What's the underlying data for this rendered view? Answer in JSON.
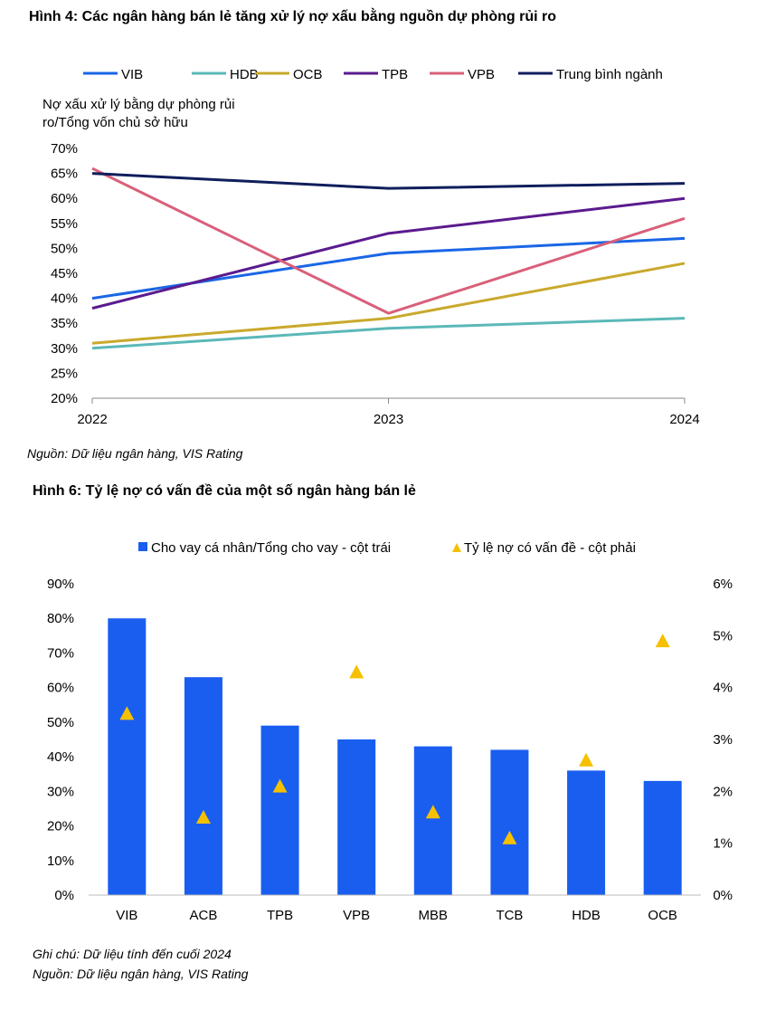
{
  "figure4": {
    "title": "Hình 4: Các ngân hàng bán lẻ tăng xử lý nợ xấu bằng nguồn dự phòng rủi ro",
    "source": "Nguồn: Dữ liệu ngân hàng, VIS Rating"
  },
  "figure6": {
    "title": "Hình 6: Tỷ lệ nợ có vấn đề của một số ngân hàng bán lẻ",
    "note": "Ghi chú: Dữ liệu tính đến cuối 2024",
    "source": "Nguồn: Dữ liệu ngân hàng, VIS Rating"
  },
  "chart_data": [
    {
      "type": "line",
      "title": "",
      "ylabel_lines": [
        "Nợ xấu xử lý bằng dự phòng rủi",
        "ro/Tổng vốn chủ sở hữu"
      ],
      "xlabel": "",
      "x": [
        "2022",
        "2023",
        "2024"
      ],
      "ylim": [
        0.2,
        0.7
      ],
      "yticks": [
        "20%",
        "25%",
        "30%",
        "35%",
        "40%",
        "45%",
        "50%",
        "55%",
        "60%",
        "65%",
        "70%"
      ],
      "grid": false,
      "legend_position": "top",
      "series": [
        {
          "name": "VIB",
          "values": [
            0.4,
            0.49,
            0.52
          ],
          "color": "#1a66e6"
        },
        {
          "name": "HDB",
          "values": [
            0.3,
            0.34,
            0.36
          ],
          "color": "#5bb8b8"
        },
        {
          "name": "OCB",
          "values": [
            0.31,
            0.36,
            0.47
          ],
          "color": "#c9a92c"
        },
        {
          "name": "TPB",
          "values": [
            0.38,
            0.53,
            0.6
          ],
          "color": "#5b1b8f"
        },
        {
          "name": "VPB",
          "values": [
            0.66,
            0.37,
            0.56
          ],
          "color": "#d9607a"
        },
        {
          "name": "Trung bình ngành",
          "values": [
            0.65,
            0.62,
            0.63
          ],
          "color": "#0f1e5c"
        }
      ]
    },
    {
      "type": "bar",
      "title": "",
      "categories": [
        "VIB",
        "ACB",
        "TPB",
        "VPB",
        "MBB",
        "TCB",
        "HDB",
        "OCB"
      ],
      "ylim_left": [
        0,
        0.9
      ],
      "yticks_left": [
        "0%",
        "10%",
        "20%",
        "30%",
        "40%",
        "50%",
        "60%",
        "70%",
        "80%",
        "90%"
      ],
      "ylim_right": [
        0,
        0.06
      ],
      "yticks_right": [
        "0%",
        "1%",
        "2%",
        "3%",
        "4%",
        "5%",
        "6%"
      ],
      "grid": false,
      "legend_position": "top",
      "series": [
        {
          "name": "Cho vay cá nhân/Tổng cho vay - cột trái",
          "kind": "bar",
          "axis": "left",
          "color": "#1a5ef0",
          "values": [
            0.8,
            0.63,
            0.49,
            0.45,
            0.43,
            0.42,
            0.36,
            0.33
          ]
        },
        {
          "name": "Tỷ lệ nợ có vấn đề - cột phải",
          "kind": "marker",
          "axis": "right",
          "color": "#f5c000",
          "values": [
            0.035,
            0.015,
            0.021,
            0.043,
            0.016,
            0.011,
            0.026,
            0.049
          ]
        }
      ]
    }
  ]
}
